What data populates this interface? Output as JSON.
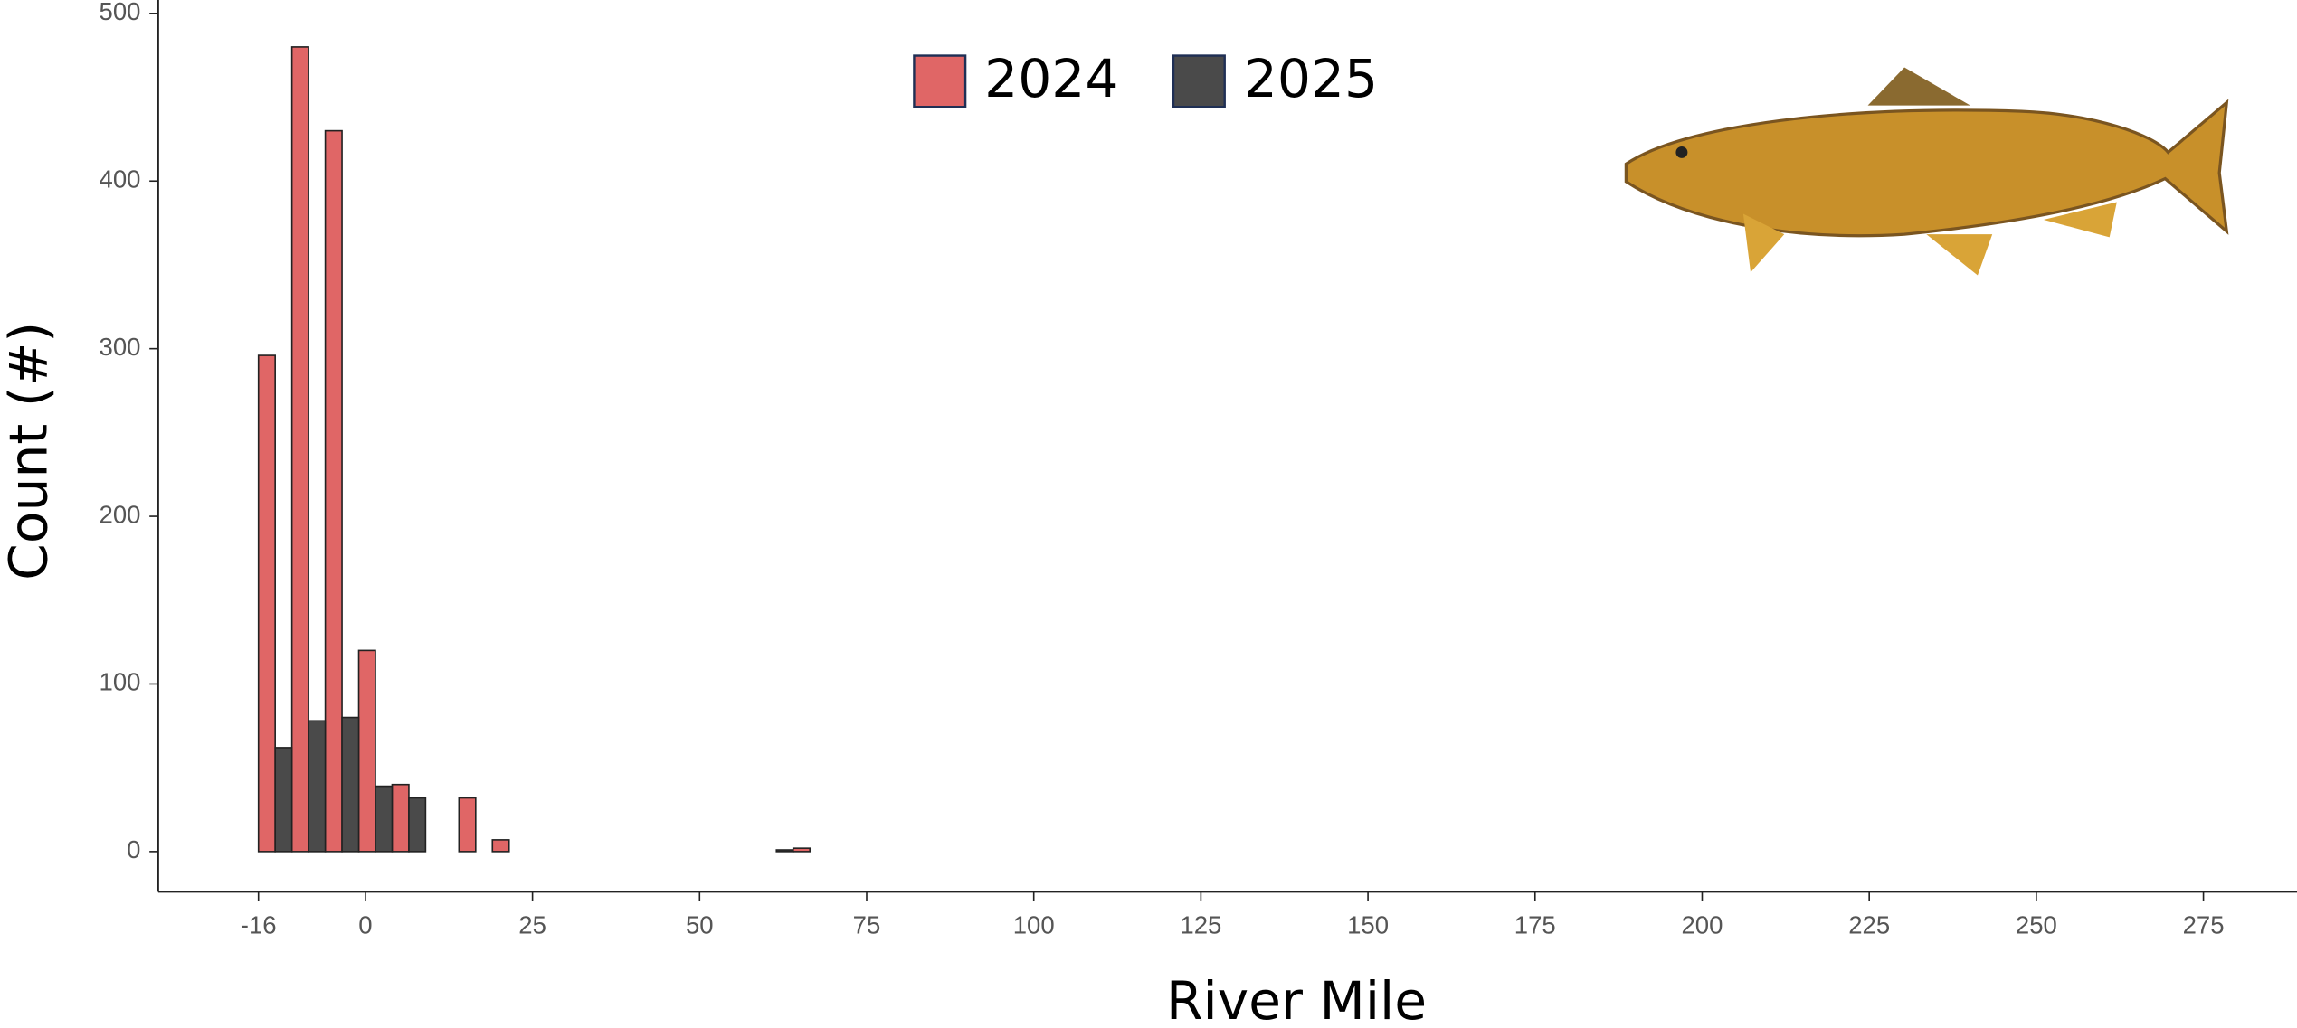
{
  "chart_data": {
    "type": "histogram",
    "xlabel": "River Mile",
    "ylabel": "Count (#)",
    "bins": [
      -16,
      -11,
      -6,
      -1,
      4,
      9,
      14,
      19,
      24,
      29,
      34,
      39,
      44,
      49,
      54,
      59,
      64,
      69,
      74,
      79,
      84,
      89,
      94,
      99,
      104,
      109,
      114,
      119,
      124,
      129,
      134,
      139,
      144,
      149,
      154,
      159,
      164,
      169,
      174,
      179,
      184,
      189,
      194,
      199,
      204,
      209,
      214,
      219,
      224,
      229,
      234,
      239,
      244,
      249,
      254,
      259,
      264,
      269,
      274
    ],
    "series": [
      {
        "name": "2024",
        "color": "#e06666",
        "values": [
          296,
          480,
          430,
          120,
          40,
          0,
          32,
          7,
          0,
          0,
          0,
          0,
          0,
          0,
          0,
          0,
          2,
          0,
          0,
          0,
          0,
          0,
          0,
          0,
          0,
          0,
          0,
          0,
          0,
          0,
          0,
          0,
          0,
          0,
          0,
          0,
          0,
          0,
          0,
          0,
          0,
          0,
          0,
          0,
          0,
          0,
          0,
          0,
          0,
          0,
          0,
          0,
          0,
          0,
          0,
          0,
          0,
          0
        ]
      },
      {
        "name": "2025",
        "color": "#4a4a4a",
        "values": [
          62,
          78,
          80,
          39,
          32,
          0,
          0,
          0,
          0,
          0,
          0,
          0,
          0,
          0,
          0,
          1,
          0,
          0,
          0,
          0,
          0,
          0,
          0,
          0,
          0,
          0,
          0,
          0,
          0,
          0,
          0,
          0,
          0,
          0,
          0,
          0,
          0,
          0,
          0,
          0,
          0,
          0,
          0,
          0,
          0,
          0,
          0,
          0,
          0,
          0,
          0,
          0,
          0,
          0,
          0,
          0,
          0,
          0
        ]
      }
    ],
    "xlim": [
      -31,
      289
    ],
    "xticks": [
      -16,
      0,
      25,
      50,
      75,
      100,
      125,
      150,
      175,
      200,
      225,
      250,
      275
    ],
    "ylim": [
      -24,
      508
    ],
    "yticks": [
      0,
      100,
      200,
      300,
      400,
      500
    ]
  }
}
